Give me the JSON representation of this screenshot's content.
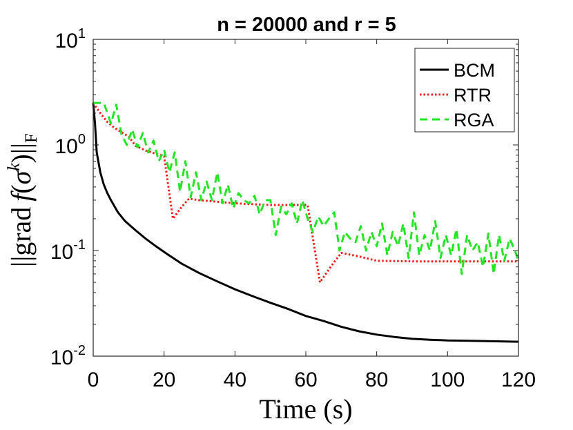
{
  "chart_data": {
    "type": "line",
    "title": "n = 20000 and r = 5",
    "xlabel": "Time (s)",
    "ylabel": "||grad f(σ^k)||_F",
    "ylabel_parts": {
      "pre": "||grad",
      "f": "f",
      "open": "(",
      "sigma": "σ",
      "sup": "k",
      "close": ")||",
      "sub": "F"
    },
    "xscale": "linear",
    "yscale": "log",
    "xlim": [
      0,
      120
    ],
    "ylim": [
      0.01,
      10
    ],
    "xticks": [
      0,
      20,
      40,
      60,
      80,
      100,
      120
    ],
    "xtick_labels": [
      "0",
      "20",
      "40",
      "60",
      "80",
      "100",
      "120"
    ],
    "yticks": [
      {
        "value": 0.01,
        "base": "10",
        "exp": "-2"
      },
      {
        "value": 0.1,
        "base": "10",
        "exp": "-1"
      },
      {
        "value": 1,
        "base": "10",
        "exp": "0"
      },
      {
        "value": 10,
        "base": "10",
        "exp": "1"
      }
    ],
    "grid": false,
    "legend_position": "top-right",
    "series": [
      {
        "name": "BCM",
        "color": "#000000",
        "style": "solid",
        "x": [
          0,
          0.5,
          1,
          2,
          3,
          4,
          5,
          7,
          9,
          12,
          15,
          18,
          21,
          25,
          30,
          35,
          40,
          45,
          50,
          55,
          60,
          65,
          70,
          75,
          80,
          85,
          90,
          95,
          100,
          105,
          110,
          115,
          120
        ],
        "y": [
          2.5,
          1.6,
          0.85,
          0.55,
          0.42,
          0.35,
          0.3,
          0.23,
          0.19,
          0.155,
          0.128,
          0.108,
          0.092,
          0.075,
          0.061,
          0.051,
          0.043,
          0.037,
          0.032,
          0.028,
          0.024,
          0.0215,
          0.019,
          0.0172,
          0.016,
          0.0152,
          0.0146,
          0.0143,
          0.0141,
          0.014,
          0.0139,
          0.0138,
          0.0137
        ]
      },
      {
        "name": "RTR",
        "color": "#ff1a1a",
        "style": "dotted",
        "x": [
          0,
          2,
          4,
          6,
          8,
          10,
          12,
          15,
          18,
          20,
          22.5,
          25,
          27,
          30,
          35,
          40,
          45,
          50,
          55,
          58,
          60.5,
          64,
          67,
          70,
          75,
          80,
          90,
          100,
          110,
          120
        ],
        "y": [
          2.5,
          2.0,
          1.65,
          1.45,
          1.32,
          1.2,
          0.98,
          0.88,
          0.82,
          0.78,
          0.2,
          0.26,
          0.31,
          0.3,
          0.29,
          0.28,
          0.275,
          0.27,
          0.27,
          0.27,
          0.27,
          0.05,
          0.07,
          0.095,
          0.088,
          0.08,
          0.079,
          0.079,
          0.079,
          0.079
        ]
      },
      {
        "name": "RGA",
        "color": "#22e622",
        "style": "dashed",
        "x": [
          0,
          3,
          5,
          6.5,
          8,
          9.5,
          11,
          12.5,
          14,
          15.5,
          17,
          18.5,
          20,
          21.5,
          23,
          24.5,
          26,
          27.5,
          29,
          30.5,
          32,
          33.5,
          35,
          36.5,
          38,
          39.5,
          41,
          42.5,
          44,
          45.5,
          47,
          48.5,
          50,
          51.5,
          53,
          54.5,
          56,
          57.5,
          59,
          60.5,
          62,
          63.5,
          65,
          66.5,
          68,
          69.5,
          71,
          72.5,
          74,
          75.5,
          77,
          78.5,
          80,
          81.5,
          83,
          84.5,
          86,
          87.5,
          89,
          90.5,
          92,
          93.5,
          95,
          96.5,
          98,
          99.5,
          101,
          102.5,
          104,
          105.5,
          107,
          108.5,
          110,
          111.5,
          113,
          114.5,
          116,
          117.5,
          119,
          120
        ],
        "y": [
          2.5,
          2.5,
          1.6,
          2.4,
          1.25,
          1.0,
          1.4,
          0.95,
          1.3,
          0.85,
          1.1,
          0.7,
          0.9,
          0.55,
          0.85,
          0.36,
          0.7,
          0.32,
          0.55,
          0.3,
          0.45,
          0.3,
          0.55,
          0.28,
          0.42,
          0.25,
          0.35,
          0.3,
          0.28,
          0.33,
          0.22,
          0.3,
          0.3,
          0.14,
          0.26,
          0.22,
          0.28,
          0.18,
          0.3,
          0.2,
          0.15,
          0.21,
          0.17,
          0.2,
          0.23,
          0.1,
          0.15,
          0.13,
          0.12,
          0.17,
          0.1,
          0.15,
          0.11,
          0.18,
          0.09,
          0.15,
          0.11,
          0.18,
          0.085,
          0.23,
          0.09,
          0.14,
          0.1,
          0.19,
          0.085,
          0.14,
          0.09,
          0.16,
          0.06,
          0.14,
          0.1,
          0.12,
          0.07,
          0.145,
          0.06,
          0.14,
          0.08,
          0.13,
          0.1,
          0.08
        ]
      }
    ]
  }
}
